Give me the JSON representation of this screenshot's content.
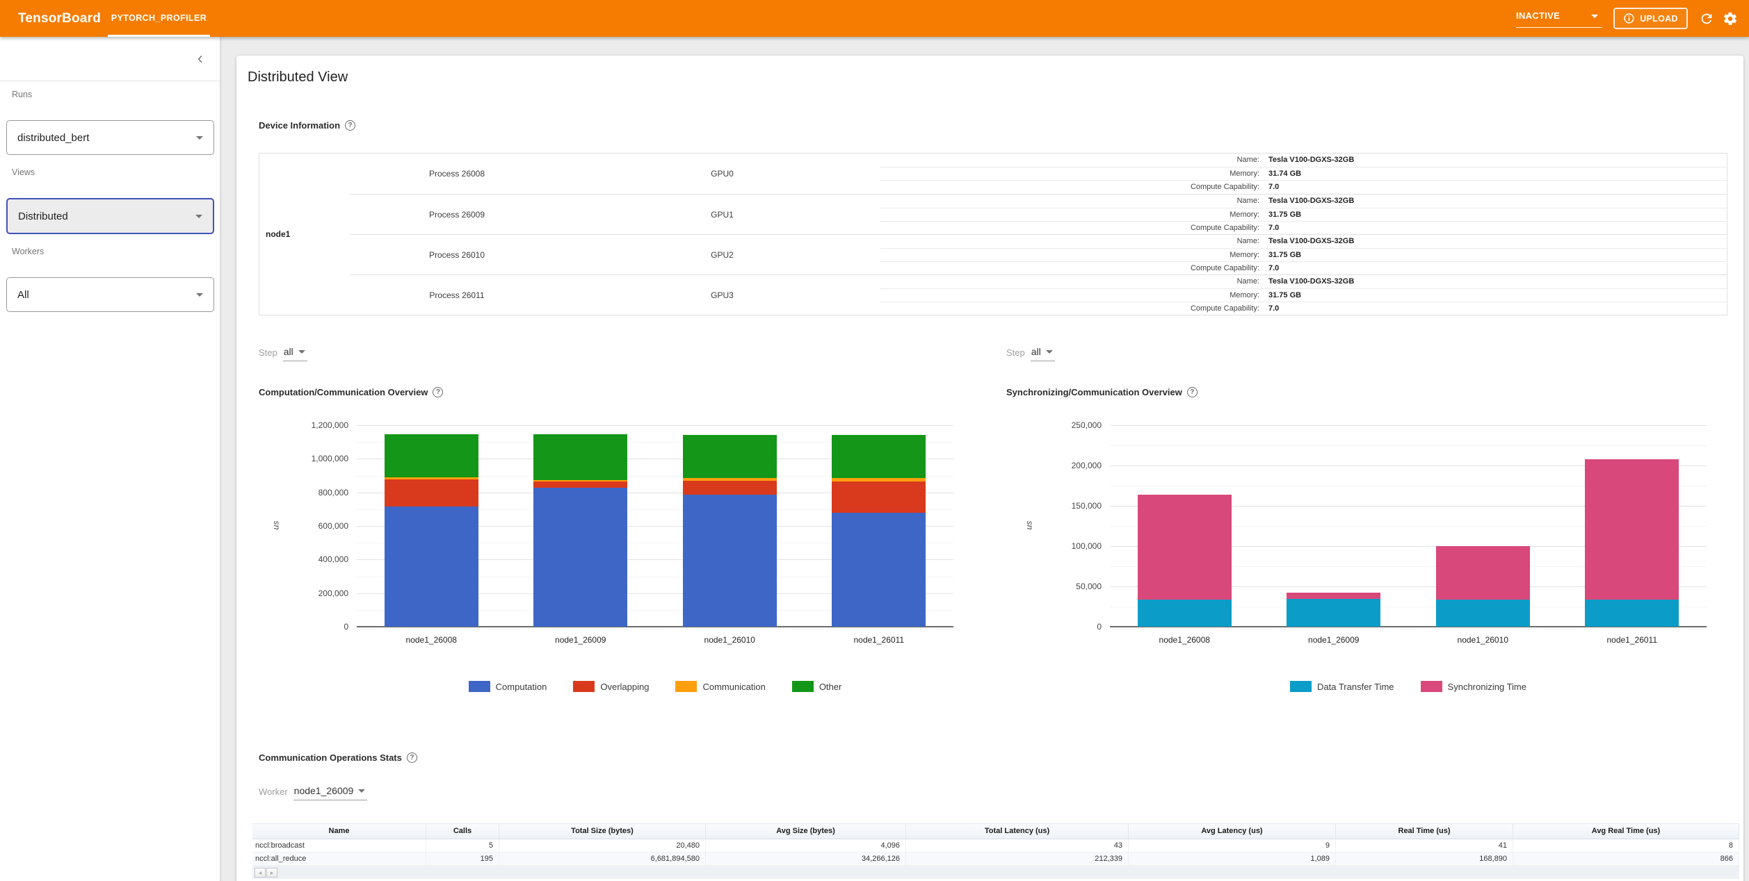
{
  "topbar": {
    "brand": "TensorBoard",
    "tab": "PYTORCH_PROFILER",
    "status_dropdown": "INACTIVE",
    "upload_label": "UPLOAD",
    "bar_color": "#f57c00"
  },
  "icons": {
    "help": "?",
    "page_prev": "◂",
    "page_next": "▸"
  },
  "sidebar": {
    "runs_label": "Runs",
    "runs_value": "distributed_bert",
    "views_label": "Views",
    "views_value": "Distributed",
    "workers_label": "Workers",
    "workers_value": "All"
  },
  "main": {
    "title": "Distributed View",
    "device_info": {
      "heading": "Device Information",
      "node": "node1",
      "row_keys": {
        "name": "Name:",
        "memory": "Memory:",
        "compute": "Compute Capability:"
      },
      "gpus": [
        {
          "process": "Process 26008",
          "gpu": "GPU0",
          "name": "Tesla V100-DGXS-32GB",
          "memory": "31.74 GB",
          "compute_capability": "7.0"
        },
        {
          "process": "Process 26009",
          "gpu": "GPU1",
          "name": "Tesla V100-DGXS-32GB",
          "memory": "31.75 GB",
          "compute_capability": "7.0"
        },
        {
          "process": "Process 26010",
          "gpu": "GPU2",
          "name": "Tesla V100-DGXS-32GB",
          "memory": "31.75 GB",
          "compute_capability": "7.0"
        },
        {
          "process": "Process 26011",
          "gpu": "GPU3",
          "name": "Tesla V100-DGXS-32GB",
          "memory": "31.75 GB",
          "compute_capability": "7.0"
        }
      ]
    },
    "step_left": {
      "label": "Step",
      "value": "all"
    },
    "step_right": {
      "label": "Step",
      "value": "all"
    },
    "comm_stats": {
      "heading": "Communication Operations Stats",
      "worker_label": "Worker",
      "worker_value": "node1_26009",
      "columns": [
        "Name",
        "Calls",
        "Total Size (bytes)",
        "Avg Size (bytes)",
        "Total Latency (us)",
        "Avg Latency (us)",
        "Real Time (us)",
        "Avg Real Time (us)"
      ],
      "rows": [
        [
          "nccl:broadcast",
          "5",
          "20,480",
          "4,096",
          "43",
          "9",
          "41",
          "8"
        ],
        [
          "nccl:all_reduce",
          "195",
          "6,681,894,580",
          "34,266,126",
          "212,339",
          "1,089",
          "168,890",
          "866"
        ]
      ]
    }
  },
  "chart_data": [
    {
      "type": "bar",
      "stacked": true,
      "title": "Computation/Communication Overview",
      "categories": [
        "node1_26008",
        "node1_26009",
        "node1_26010",
        "node1_26011"
      ],
      "series": [
        {
          "name": "Computation",
          "color": "#3e66c6",
          "values": [
            717000,
            828000,
            788000,
            681000
          ]
        },
        {
          "name": "Overlapping",
          "color": "#d93a1d",
          "values": [
            161000,
            39000,
            83000,
            185000
          ]
        },
        {
          "name": "Communication",
          "color": "#ff9f0e",
          "values": [
            12000,
            7000,
            15000,
            19000
          ]
        },
        {
          "name": "Other",
          "color": "#149618",
          "values": [
            257000,
            273000,
            257000,
            258000
          ]
        }
      ],
      "xlabel": "",
      "ylabel": "us",
      "ylim": [
        0,
        1200000
      ],
      "ytick_step": 200000,
      "minor_step": 100000,
      "grid": true,
      "legend_position": "bottom"
    },
    {
      "type": "bar",
      "stacked": true,
      "title": "Synchronizing/Communication Overview",
      "categories": [
        "node1_26008",
        "node1_26009",
        "node1_26010",
        "node1_26011"
      ],
      "series": [
        {
          "name": "Data Transfer Time",
          "color": "#0b9dc8",
          "values": [
            34000,
            34000,
            34000,
            34000
          ]
        },
        {
          "name": "Synchronizing Time",
          "color": "#d8487b",
          "values": [
            130000,
            8000,
            66000,
            174000
          ]
        }
      ],
      "xlabel": "",
      "ylabel": "us",
      "ylim": [
        0,
        250000
      ],
      "ytick_step": 50000,
      "minor_step": 25000,
      "grid": true,
      "legend_position": "bottom"
    }
  ]
}
